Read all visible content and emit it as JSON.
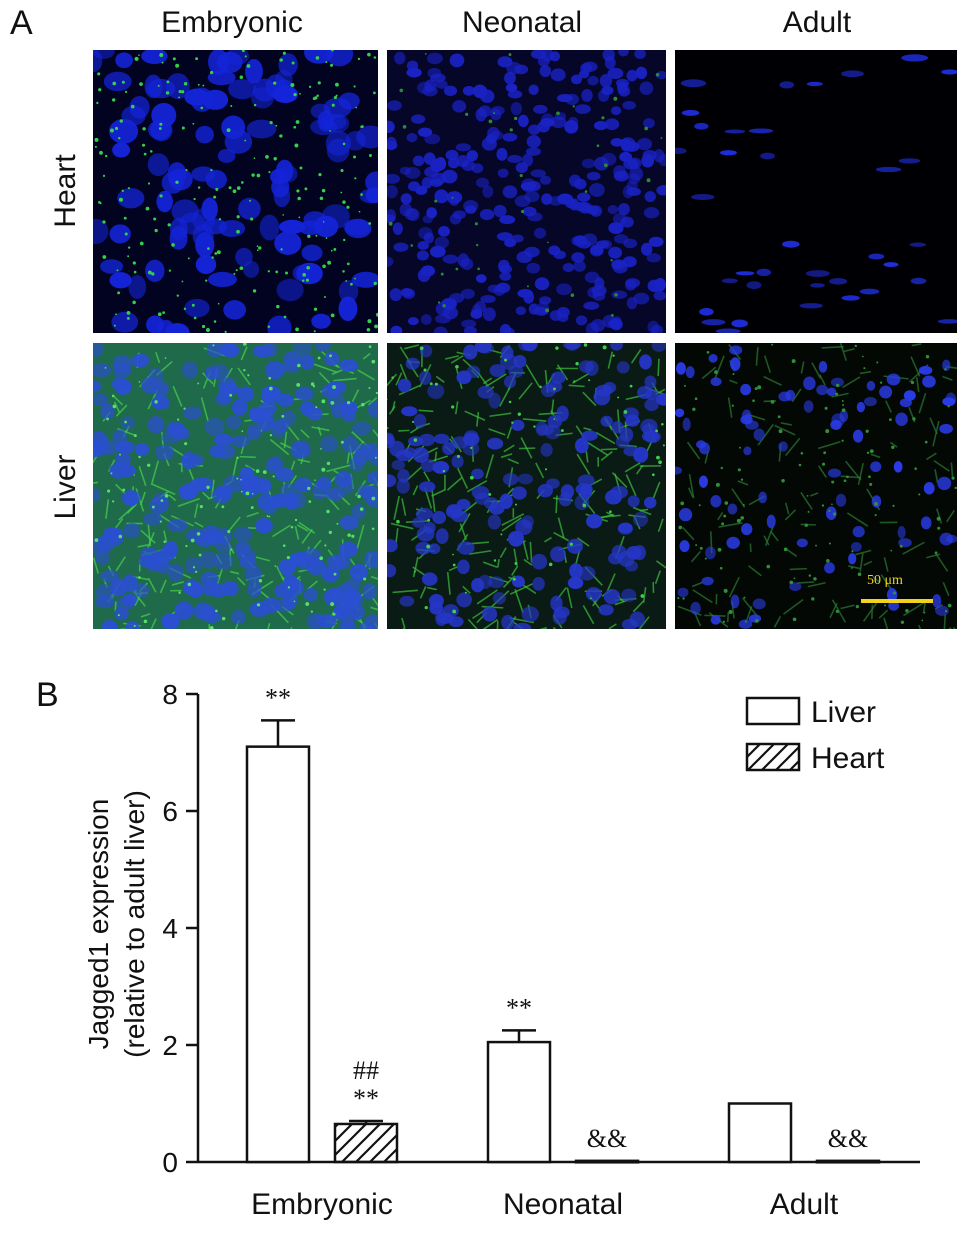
{
  "panel_a": {
    "letter": "A",
    "columns": [
      "Embryonic",
      "Neonatal",
      "Adult"
    ],
    "rows": [
      "Heart",
      "Liver"
    ],
    "scale_bar_label": "50 μm"
  },
  "panel_b": {
    "letter": "B"
  },
  "chart_data": {
    "type": "bar",
    "categories": [
      "Embryonic",
      "Neonatal",
      "Adult"
    ],
    "ylabel_line1": "Jagged1 expression",
    "ylabel_line2": "(relative to adult liver)",
    "ylim": [
      0,
      8
    ],
    "yticks": [
      0,
      2,
      4,
      6,
      8
    ],
    "legend_position": "top-right",
    "series": [
      {
        "name": "Liver",
        "pattern": "open",
        "values": [
          7.1,
          2.05,
          1.0
        ],
        "errors": [
          0.45,
          0.2,
          0
        ],
        "annotations": [
          [
            "**"
          ],
          [
            "**"
          ],
          []
        ]
      },
      {
        "name": "Heart",
        "pattern": "hatched",
        "values": [
          0.65,
          0.02,
          0.02
        ],
        "errors": [
          0.05,
          0,
          0
        ],
        "annotations": [
          [
            "##",
            "**"
          ],
          [
            "&&"
          ],
          [
            "&&"
          ]
        ]
      }
    ]
  }
}
